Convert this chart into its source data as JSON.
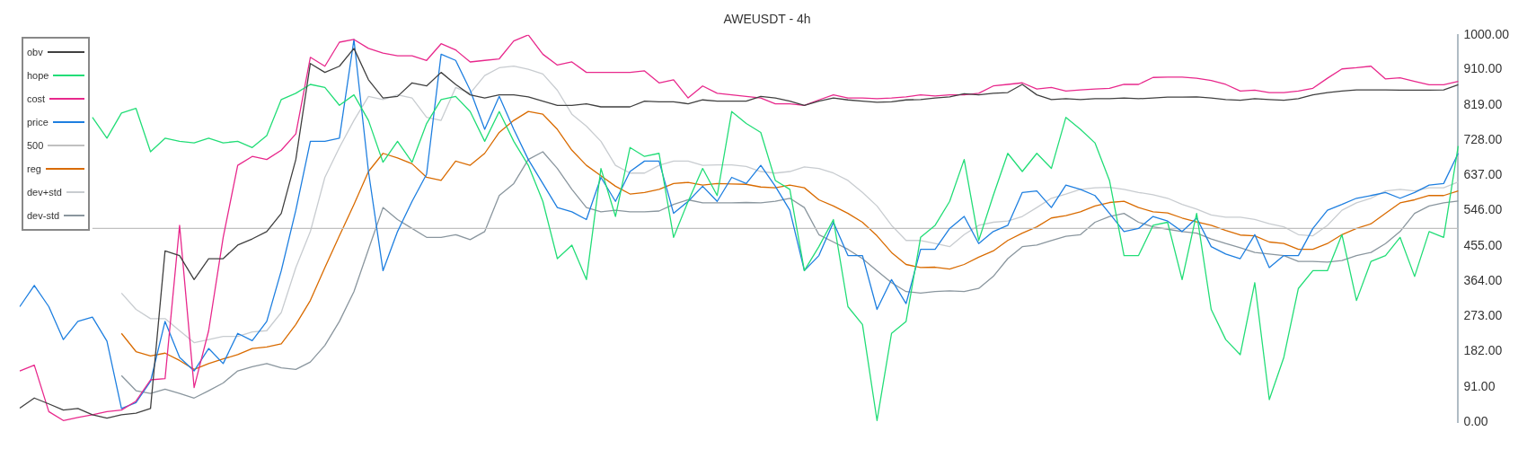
{
  "chart_data": {
    "type": "line",
    "title": "AWEUSDT - 4h",
    "categories": [
      null,
      null,
      null,
      null,
      null,
      null,
      null,
      null,
      null,
      null,
      null,
      null,
      null,
      null,
      null,
      null,
      null,
      null,
      null,
      null,
      null,
      null,
      null,
      null,
      null,
      null,
      null,
      null,
      null,
      null,
      null,
      null,
      null,
      null,
      null,
      null,
      null,
      null,
      null,
      null,
      null,
      null,
      null,
      null,
      null,
      null,
      null,
      null,
      null,
      null,
      null,
      null,
      null,
      null,
      null,
      null,
      null,
      null,
      null,
      null,
      null,
      null,
      null,
      null,
      null,
      null,
      null,
      null,
      null,
      null,
      null,
      null,
      null,
      null,
      null,
      null,
      null,
      null,
      null,
      null,
      null,
      null,
      null,
      null,
      null,
      null,
      null,
      null,
      null,
      null,
      null,
      null,
      null,
      null,
      null,
      null,
      null,
      null,
      null,
      null
    ],
    "series": [
      {
        "name": "obv",
        "color": "#404040",
        "values": [
          36,
          62,
          47,
          31,
          35,
          19,
          10,
          19,
          23,
          35,
          442,
          430,
          368,
          422,
          422,
          457,
          473,
          492,
          539,
          678,
          926,
          903,
          919,
          965,
          884,
          837,
          841,
          876,
          868,
          903,
          872,
          845,
          837,
          845,
          845,
          840,
          829,
          818,
          818,
          822,
          814,
          814,
          814,
          829,
          827,
          827,
          822,
          832,
          829,
          829,
          829,
          841,
          837,
          829,
          818,
          829,
          837,
          832,
          829,
          826,
          827,
          832,
          833,
          837,
          840,
          848,
          845,
          849,
          851,
          872,
          845,
          833,
          835,
          833,
          835,
          835,
          837,
          835,
          837,
          839,
          839,
          840,
          837,
          833,
          831,
          835,
          833,
          831,
          835,
          845,
          851,
          855,
          858,
          858,
          858,
          857,
          857,
          857,
          858,
          871
        ]
      },
      {
        "name": "hope",
        "color": "#22dd77",
        "values": [
          null,
          null,
          null,
          null,
          null,
          787,
          733,
          798,
          810,
          698,
          733,
          725,
          721,
          733,
          721,
          725,
          709,
          740,
          833,
          849,
          872,
          864,
          818,
          845,
          779,
          671,
          725,
          671,
          771,
          833,
          841,
          802,
          725,
          802,
          725,
          663,
          570,
          422,
          457,
          368,
          655,
          531,
          709,
          686,
          694,
          477,
          570,
          655,
          585,
          802,
          771,
          748,
          624,
          601,
          391,
          453,
          523,
          298,
          252,
          4,
          229,
          260,
          477,
          508,
          570,
          678,
          469,
          585,
          694,
          647,
          694,
          655,
          787,
          756,
          721,
          624,
          430,
          430,
          508,
          516,
          368,
          539,
          291,
          213,
          174,
          360,
          58,
          167,
          345,
          391,
          391,
          484,
          314,
          415,
          430,
          477,
          376,
          492,
          477,
          713
        ]
      },
      {
        "name": "cost",
        "color": "#e8288c",
        "values": [
          132,
          147,
          27,
          4,
          12,
          19,
          27,
          31,
          54,
          109,
          112,
          508,
          89,
          236,
          477,
          663,
          686,
          678,
          702,
          744,
          942,
          919,
          981,
          988,
          965,
          953,
          946,
          946,
          934,
          977,
          961,
          930,
          934,
          938,
          984,
          1000,
          950,
          922,
          930,
          903,
          903,
          903,
          903,
          907,
          876,
          884,
          837,
          868,
          849,
          845,
          841,
          837,
          822,
          822,
          818,
          832,
          845,
          837,
          837,
          835,
          837,
          840,
          845,
          842,
          845,
          845,
          849,
          868,
          872,
          876,
          860,
          864,
          855,
          858,
          860,
          862,
          872,
          872,
          890,
          891,
          891,
          888,
          882,
          872,
          855,
          857,
          851,
          851,
          855,
          862,
          888,
          912,
          915,
          919,
          886,
          889,
          880,
          871,
          871,
          880
        ]
      },
      {
        "name": "price",
        "color": "#1e7fe0",
        "values": [
          298,
          353,
          298,
          213,
          260,
          271,
          209,
          35,
          50,
          105,
          260,
          167,
          132,
          190,
          151,
          229,
          210,
          260,
          391,
          547,
          725,
          725,
          733,
          988,
          647,
          391,
          492,
          570,
          640,
          950,
          934,
          857,
          756,
          841,
          756,
          678,
          616,
          554,
          543,
          523,
          632,
          570,
          647,
          674,
          674,
          539,
          570,
          609,
          570,
          632,
          616,
          663,
          609,
          547,
          391,
          430,
          516,
          430,
          430,
          291,
          368,
          306,
          446,
          446,
          500,
          531,
          461,
          492,
          508,
          593,
          597,
          554,
          612,
          601,
          585,
          539,
          492,
          500,
          531,
          519,
          492,
          527,
          453,
          434,
          422,
          484,
          399,
          430,
          430,
          500,
          547,
          562,
          578,
          585,
          593,
          578,
          593,
          612,
          616,
          694
        ]
      },
      {
        "name": "500",
        "color": "#c0c0c0",
        "values": [
          null,
          null,
          null,
          null,
          null,
          500,
          500,
          500,
          500,
          500,
          500,
          500,
          500,
          500,
          500,
          500,
          500,
          500,
          500,
          500,
          500,
          500,
          500,
          500,
          500,
          500,
          500,
          500,
          500,
          500,
          500,
          500,
          500,
          500,
          500,
          500,
          500,
          500,
          500,
          500,
          500,
          500,
          500,
          500,
          500,
          500,
          500,
          500,
          500,
          500,
          500,
          500,
          500,
          500,
          500,
          500,
          500,
          500,
          500,
          500,
          500,
          500,
          500,
          500,
          500,
          500,
          500,
          500,
          500,
          500,
          500,
          500,
          500,
          500,
          500,
          500,
          500,
          500,
          500,
          500,
          500,
          500,
          500,
          500,
          500,
          500,
          500,
          500,
          500,
          500,
          500,
          500,
          500,
          500,
          500,
          500,
          500,
          500,
          500,
          500
        ]
      },
      {
        "name": "reg",
        "color": "#d96b00",
        "values": [
          null,
          null,
          null,
          null,
          null,
          null,
          null,
          229,
          182,
          171,
          178,
          159,
          136,
          151,
          163,
          174,
          190,
          194,
          202,
          252,
          314,
          399,
          481,
          562,
          647,
          694,
          682,
          667,
          632,
          624,
          674,
          663,
          694,
          748,
          779,
          802,
          795,
          756,
          702,
          663,
          636,
          609,
          589,
          593,
          601,
          616,
          619,
          612,
          616,
          615,
          614,
          607,
          605,
          612,
          605,
          574,
          558,
          539,
          516,
          481,
          438,
          407,
          399,
          400,
          395,
          407,
          426,
          442,
          469,
          488,
          504,
          527,
          533,
          543,
          558,
          567,
          570,
          554,
          543,
          540,
          527,
          517,
          508,
          495,
          483,
          481,
          465,
          461,
          446,
          446,
          461,
          484,
          500,
          512,
          539,
          566,
          574,
          585,
          585,
          597
        ]
      },
      {
        "name": "dev+std",
        "color": "#c8ccd0",
        "values": [
          null,
          null,
          null,
          null,
          null,
          null,
          null,
          333,
          291,
          267,
          267,
          236,
          205,
          213,
          221,
          221,
          233,
          236,
          283,
          399,
          492,
          632,
          709,
          779,
          841,
          833,
          845,
          837,
          787,
          779,
          864,
          849,
          895,
          915,
          919,
          911,
          899,
          857,
          795,
          764,
          725,
          663,
          643,
          643,
          663,
          674,
          674,
          663,
          664,
          664,
          660,
          647,
          643,
          647,
          659,
          655,
          643,
          624,
          593,
          558,
          508,
          469,
          469,
          461,
          453,
          484,
          508,
          516,
          519,
          531,
          554,
          578,
          589,
          601,
          605,
          606,
          601,
          593,
          587,
          578,
          562,
          550,
          535,
          529,
          529,
          523,
          512,
          504,
          484,
          481,
          508,
          547,
          566,
          578,
          597,
          601,
          597,
          605,
          605,
          620
        ]
      },
      {
        "name": "dev-std",
        "color": "#8a969e",
        "values": [
          null,
          null,
          null,
          null,
          null,
          null,
          null,
          120,
          81,
          74,
          85,
          74,
          62,
          81,
          101,
          132,
          143,
          151,
          140,
          136,
          155,
          198,
          260,
          337,
          446,
          554,
          523,
          500,
          477,
          477,
          484,
          471,
          492,
          585,
          616,
          678,
          698,
          655,
          601,
          554,
          543,
          547,
          543,
          543,
          545,
          562,
          574,
          566,
          566,
          566,
          567,
          566,
          570,
          578,
          554,
          484,
          465,
          446,
          422,
          391,
          360,
          337,
          333,
          337,
          339,
          337,
          345,
          376,
          422,
          453,
          457,
          469,
          480,
          484,
          516,
          531,
          539,
          516,
          504,
          498,
          492,
          488,
          473,
          461,
          450,
          438,
          434,
          430,
          415,
          415,
          413,
          417,
          430,
          438,
          461,
          492,
          539,
          558,
          566,
          571
        ]
      }
    ],
    "ylim": [
      0,
      1000
    ],
    "yticks": [
      {
        "value": 0,
        "label": "0.00"
      },
      {
        "value": 91,
        "label": "91.00"
      },
      {
        "value": 182,
        "label": "182.00"
      },
      {
        "value": 273,
        "label": "273.00"
      },
      {
        "value": 364,
        "label": "364.00"
      },
      {
        "value": 455,
        "label": "455.00"
      },
      {
        "value": 546,
        "label": "546.00"
      },
      {
        "value": 637,
        "label": "637.00"
      },
      {
        "value": 728,
        "label": "728.00"
      },
      {
        "value": 819,
        "label": "819.00"
      },
      {
        "value": 910,
        "label": "910.00"
      },
      {
        "value": 1000,
        "label": "1000.00"
      }
    ],
    "tick_labels": "y",
    "legend": "top left"
  }
}
